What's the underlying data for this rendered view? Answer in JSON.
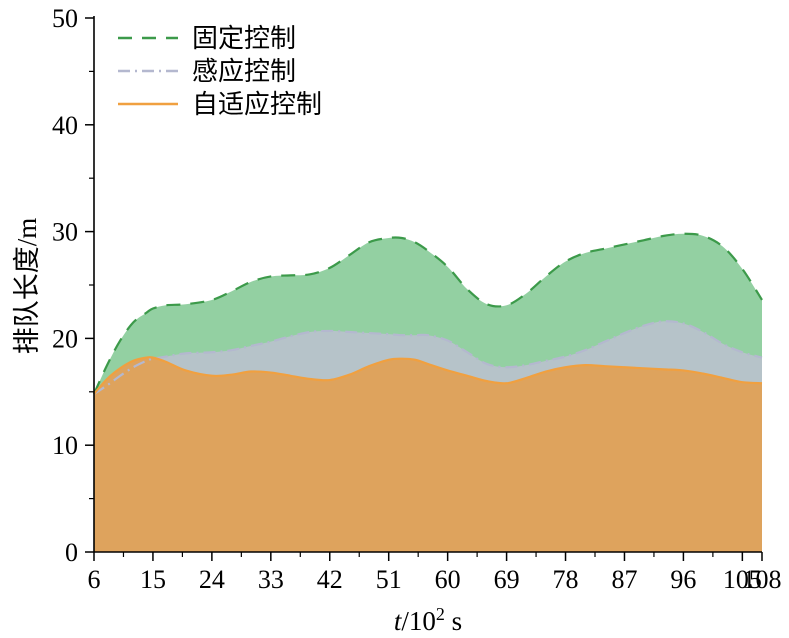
{
  "chart_data": {
    "type": "area",
    "xlabel_italic": "t",
    "xlabel_rest": "/10",
    "xlabel_sup": "2",
    "xlabel_unit": " s",
    "ylabel": "排队长度/m",
    "xlim": [
      6,
      108
    ],
    "ylim": [
      0,
      50
    ],
    "xticks": [
      6,
      15,
      24,
      33,
      42,
      51,
      60,
      69,
      78,
      87,
      96,
      105,
      108
    ],
    "yticks": [
      0,
      10,
      20,
      30,
      40,
      50
    ],
    "legend_position": "top-left",
    "grid": false,
    "x": [
      6,
      8,
      10,
      12,
      14,
      15,
      17,
      20,
      24,
      27,
      30,
      33,
      36,
      39,
      42,
      45,
      48,
      51,
      53,
      55,
      57,
      60,
      63,
      66,
      69,
      72,
      75,
      78,
      81,
      84,
      87,
      90,
      93,
      96,
      99,
      102,
      105,
      108
    ],
    "series": [
      {
        "name": "固定控制",
        "style": "dashed",
        "line_color": "#3c9a4a",
        "fill_color": "#93d0a2",
        "values": [
          14.8,
          17.5,
          19.8,
          21.5,
          22.4,
          22.8,
          23.1,
          23.2,
          23.6,
          24.4,
          25.3,
          25.8,
          25.9,
          26.0,
          26.6,
          27.8,
          29.0,
          29.4,
          29.4,
          29.0,
          28.2,
          26.7,
          24.6,
          23.2,
          23.1,
          24.2,
          25.8,
          27.2,
          28.0,
          28.4,
          28.8,
          29.2,
          29.6,
          29.8,
          29.6,
          28.6,
          26.5,
          23.6
        ]
      },
      {
        "name": "感应控制",
        "style": "dash-dot",
        "line_color": "#b4b8cf",
        "fill_color": "#b6c3c9",
        "values": [
          14.8,
          15.6,
          16.5,
          17.3,
          17.9,
          18.1,
          18.3,
          18.6,
          18.7,
          18.9,
          19.3,
          19.7,
          20.2,
          20.6,
          20.7,
          20.6,
          20.5,
          20.4,
          20.3,
          20.3,
          20.3,
          19.8,
          18.7,
          17.6,
          17.3,
          17.5,
          17.9,
          18.3,
          18.9,
          19.7,
          20.5,
          21.2,
          21.6,
          21.4,
          20.6,
          19.5,
          18.7,
          18.2
        ]
      },
      {
        "name": "自适应控制",
        "style": "solid",
        "line_color": "#f0a040",
        "fill_color": "#dea35d",
        "values": [
          14.8,
          16.2,
          17.2,
          17.9,
          18.2,
          18.2,
          17.8,
          17.0,
          16.5,
          16.6,
          16.9,
          16.8,
          16.5,
          16.2,
          16.1,
          16.6,
          17.4,
          18.0,
          18.1,
          18.0,
          17.6,
          17.0,
          16.5,
          16.0,
          15.8,
          16.3,
          16.9,
          17.3,
          17.5,
          17.4,
          17.3,
          17.2,
          17.1,
          17.0,
          16.7,
          16.3,
          15.9,
          15.8
        ]
      }
    ]
  }
}
